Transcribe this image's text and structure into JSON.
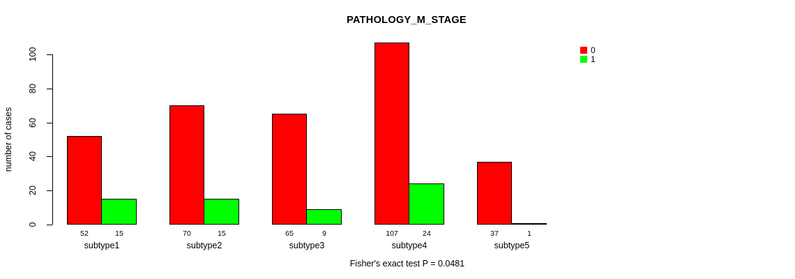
{
  "chart_data": {
    "type": "bar",
    "title": "PATHOLOGY_M_STAGE",
    "ylabel": "number of cases",
    "xlabel": "",
    "categories": [
      "subtype1",
      "subtype2",
      "subtype3",
      "subtype4",
      "subtype5"
    ],
    "series": [
      {
        "name": "0",
        "color": "#FF0000",
        "values": [
          52,
          70,
          65,
          107,
          37
        ]
      },
      {
        "name": "1",
        "color": "#00FF00",
        "values": [
          15,
          15,
          9,
          24,
          1
        ]
      }
    ],
    "yticks": [
      0,
      20,
      40,
      60,
      80,
      100
    ],
    "ylim": [
      0,
      100
    ],
    "grid": false,
    "show_value_labels": true,
    "legend_position": "top-right"
  },
  "legend": {
    "items": [
      {
        "label": "0",
        "color": "#FF0000"
      },
      {
        "label": "1",
        "color": "#00FF00"
      }
    ]
  },
  "footer": {
    "text": "Fisher's exact test P = 0.0481"
  }
}
